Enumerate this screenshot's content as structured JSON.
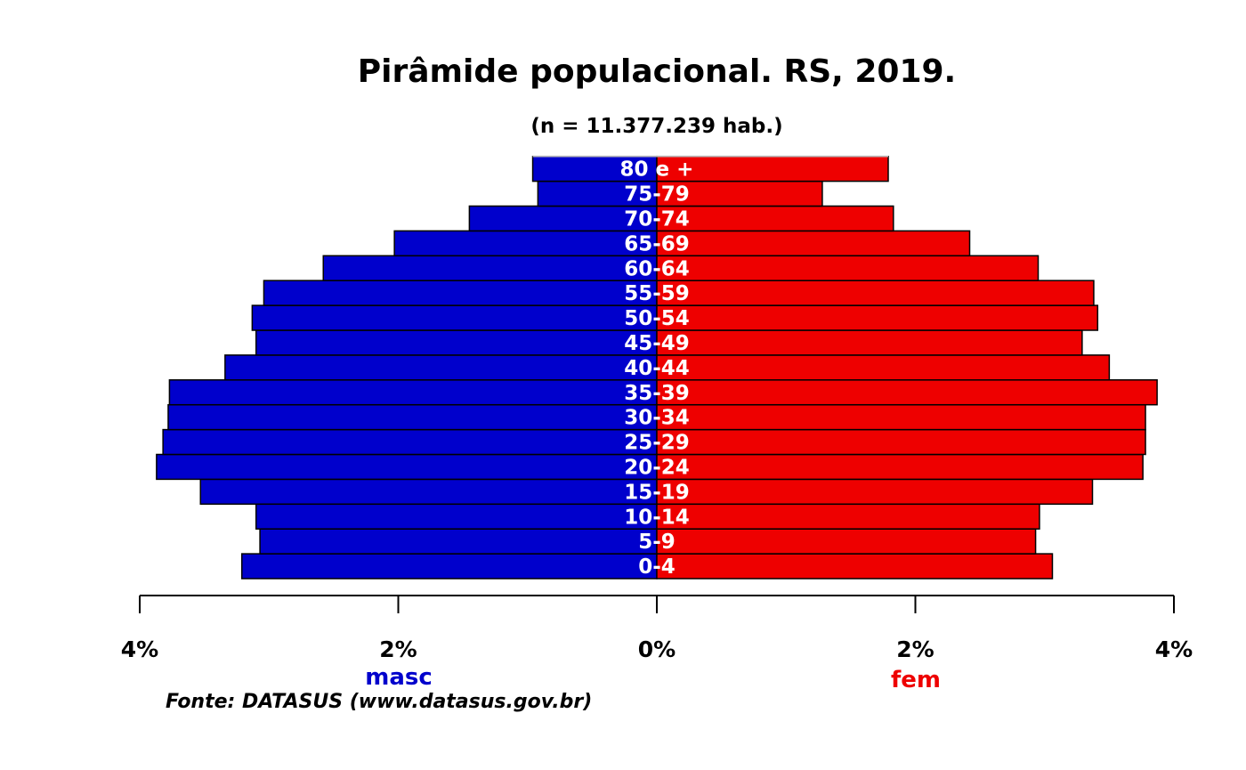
{
  "chart_data": {
    "type": "bar",
    "orientation": "horizontal-population-pyramid",
    "title": "Pirâmide populacional.  RS,  2019.",
    "subtitle": "(n = 11.377.239 hab.)",
    "categories": [
      "0-4",
      "5-9",
      "10-14",
      "15-19",
      "20-24",
      "25-29",
      "30-34",
      "35-39",
      "40-44",
      "45-49",
      "50-54",
      "55-59",
      "60-64",
      "65-69",
      "70-74",
      "75-79",
      "80 e +"
    ],
    "series": [
      {
        "name": "masc",
        "color": "#0000cc",
        "values": [
          3.21,
          3.07,
          3.1,
          3.53,
          3.87,
          3.82,
          3.78,
          3.77,
          3.34,
          3.1,
          3.13,
          3.04,
          2.58,
          2.03,
          1.45,
          0.92,
          0.96
        ]
      },
      {
        "name": "fem",
        "color": "#ee0000",
        "values": [
          3.06,
          2.93,
          2.96,
          3.37,
          3.76,
          3.78,
          3.78,
          3.87,
          3.5,
          3.29,
          3.41,
          3.38,
          2.95,
          2.42,
          1.83,
          1.28,
          1.79
        ]
      }
    ],
    "xlim": [
      -4,
      4
    ],
    "ticks": [
      {
        "value": -4,
        "label": "4%"
      },
      {
        "value": -2,
        "label": "2%"
      },
      {
        "value": 0,
        "label": "0%"
      },
      {
        "value": 2,
        "label": "2%"
      },
      {
        "value": 4,
        "label": "4%"
      }
    ],
    "legend": {
      "left": "masc",
      "right": "fem"
    },
    "source": "Fonte: DATASUS (www.datasus.gov.br)",
    "grid": false
  }
}
